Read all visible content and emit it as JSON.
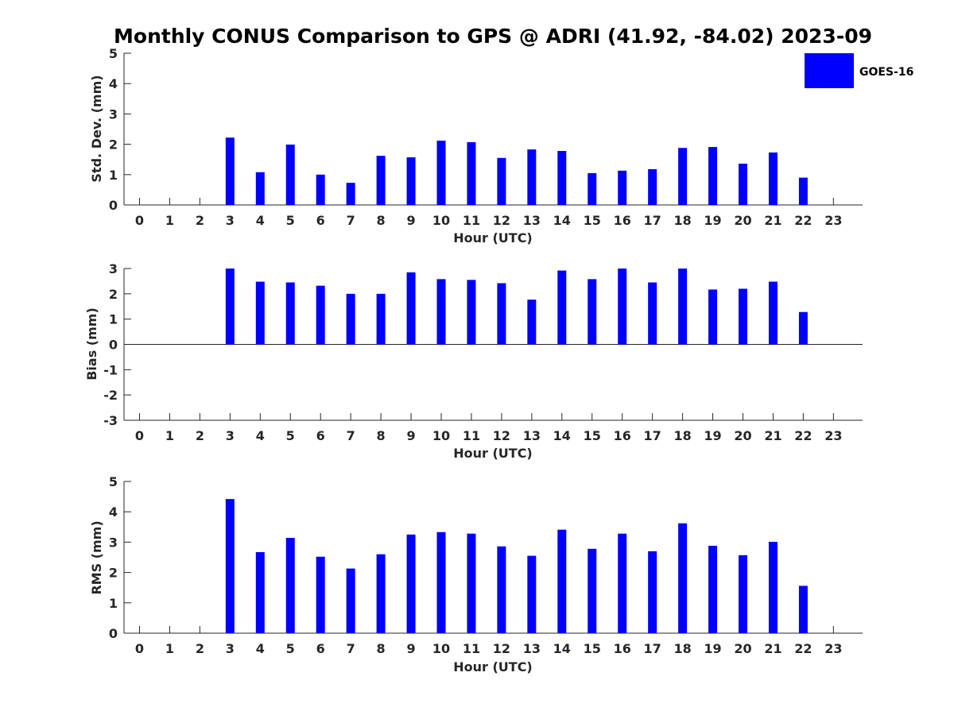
{
  "colors": {
    "bar": "#0000ff",
    "axis": "#262626",
    "background": "#ffffff"
  },
  "chart_data": {
    "type": "bar",
    "title": "Monthly CONUS Comparison to GPS @ ADRI (41.92, -84.02) 2023-09",
    "legend": {
      "entries": [
        "GOES-16"
      ],
      "position": "top-right"
    },
    "categories": [
      "0",
      "1",
      "2",
      "3",
      "4",
      "5",
      "6",
      "7",
      "8",
      "9",
      "10",
      "11",
      "12",
      "13",
      "14",
      "15",
      "16",
      "17",
      "18",
      "19",
      "20",
      "21",
      "22",
      "23"
    ],
    "panels": [
      {
        "ylabel": "Std. Dev. (mm)",
        "xlabel": "Hour (UTC)",
        "ylim": [
          0,
          5
        ],
        "yticks": [
          "0",
          "1",
          "2",
          "3",
          "4",
          "5"
        ],
        "series": [
          {
            "name": "GOES-16",
            "values": [
              null,
              null,
              null,
              2.22,
              1.08,
              1.99,
              1.0,
              0.73,
              1.62,
              1.57,
              2.12,
              2.07,
              1.55,
              1.83,
              1.78,
              1.05,
              1.13,
              1.18,
              1.88,
              1.91,
              1.36,
              1.73,
              0.9,
              null
            ]
          }
        ]
      },
      {
        "ylabel": "Bias (mm)",
        "xlabel": "Hour (UTC)",
        "ylim": [
          -3,
          3
        ],
        "yticks": [
          "-3",
          "-2",
          "-1",
          "0",
          "1",
          "2",
          "3"
        ],
        "zero_line": true,
        "series": [
          {
            "name": "GOES-16",
            "values": [
              null,
              null,
              null,
              3.0,
              2.48,
              2.45,
              2.32,
              2.0,
              2.0,
              2.85,
              2.58,
              2.55,
              2.42,
              1.77,
              2.92,
              2.58,
              3.0,
              2.45,
              3.0,
              2.17,
              2.2,
              2.48,
              1.28,
              null
            ]
          }
        ]
      },
      {
        "ylabel": "RMS (mm)",
        "xlabel": "Hour (UTC)",
        "ylim": [
          0,
          5
        ],
        "yticks": [
          "0",
          "1",
          "2",
          "3",
          "4",
          "5"
        ],
        "series": [
          {
            "name": "GOES-16",
            "values": [
              null,
              null,
              null,
              4.42,
              2.67,
              3.14,
              2.52,
              2.13,
              2.6,
              3.25,
              3.33,
              3.28,
              2.86,
              2.55,
              3.41,
              2.78,
              3.28,
              2.7,
              3.62,
              2.88,
              2.57,
              3.01,
              1.56,
              null
            ]
          }
        ]
      }
    ]
  }
}
